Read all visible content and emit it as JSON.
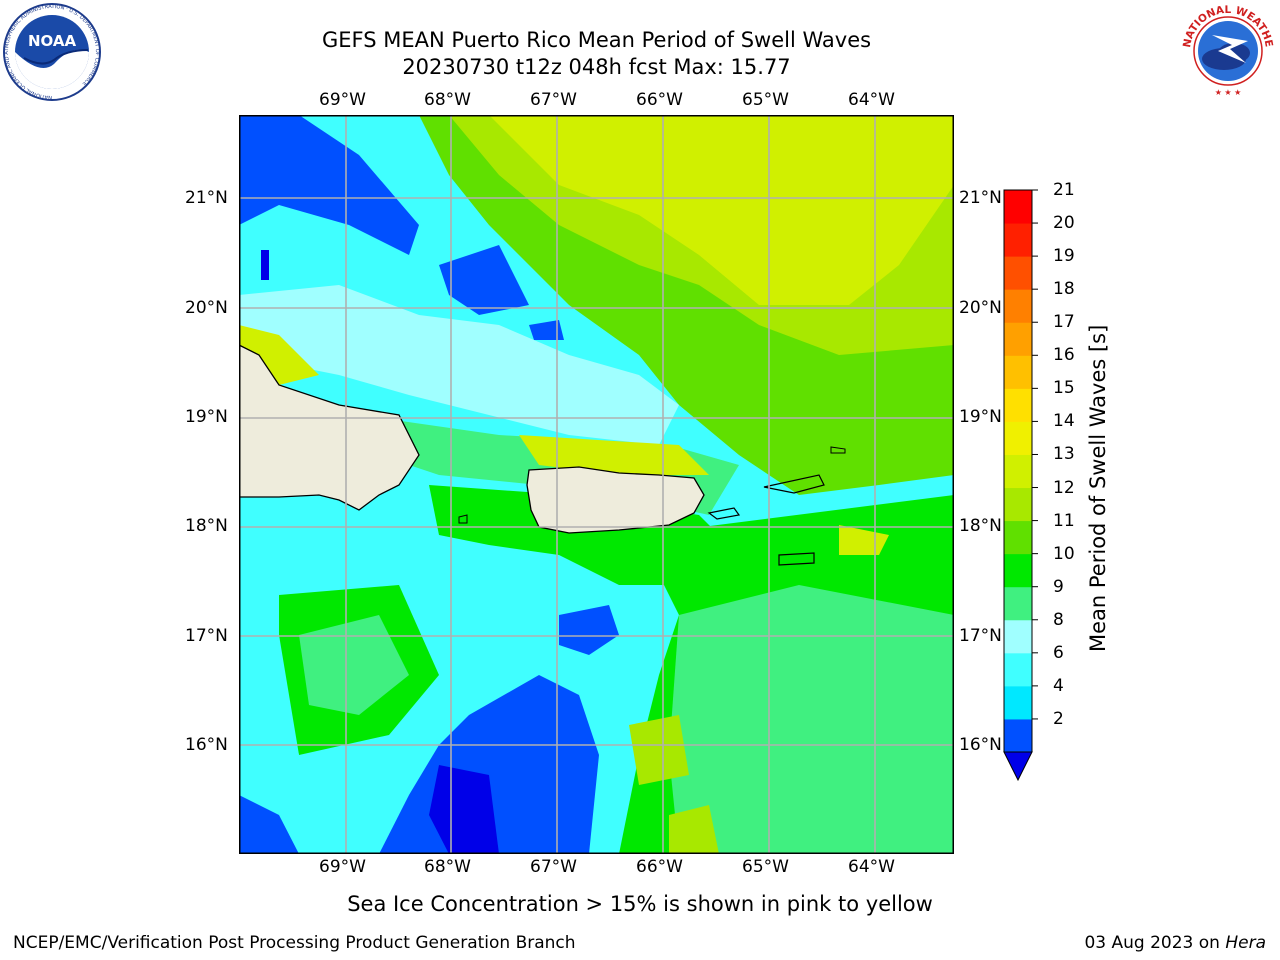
{
  "header": {
    "title_line1": "GEFS MEAN Puerto Rico Mean Period of Swell Waves",
    "title_line2": "20230730 t12z 048h fcst   Max: 15.77"
  },
  "logos": {
    "noaa_text": "NOAA",
    "noaa_ring_text": "NATIONAL OCEANIC AND ATMOSPHERIC ADMINISTRATION · U.S. DEPARTMENT OF COMMERCE",
    "nws_ring_text": "NATIONAL WEATHER SERVICE"
  },
  "map": {
    "lon_ticks": [
      "69°W",
      "68°W",
      "67°W",
      "66°W",
      "65°W",
      "64°W"
    ],
    "lat_ticks": [
      "21°N",
      "20°N",
      "19°N",
      "18°N",
      "17°N",
      "16°N"
    ]
  },
  "colorbar": {
    "title": "Mean Period of Swell Waves [s]",
    "labels": [
      "21",
      "20",
      "19",
      "18",
      "17",
      "16",
      "15",
      "14",
      "13",
      "12",
      "11",
      "10",
      "9",
      "8",
      "6",
      "4",
      "2"
    ],
    "colors": [
      "#0050ff",
      "#00e8ff",
      "#40ffff",
      "#a0ffff",
      "#40f080",
      "#00e800",
      "#60e000",
      "#a8e800",
      "#d0f000",
      "#f0f000",
      "#ffe000",
      "#ffc000",
      "#ffa000",
      "#ff8000",
      "#ff5000",
      "#ff2000",
      "#ff0000"
    ],
    "under_color": "#0000e8"
  },
  "palette": {
    "land": "#eeecdc",
    "grid": "#b0b0b0"
  },
  "note": "Sea Ice Concentration > 15% is shown in pink to yellow",
  "footer": {
    "left": "NCEP/EMC/Verification Post Processing Product Generation Branch",
    "date": "03 Aug 2023 on ",
    "machine": "Hera"
  }
}
